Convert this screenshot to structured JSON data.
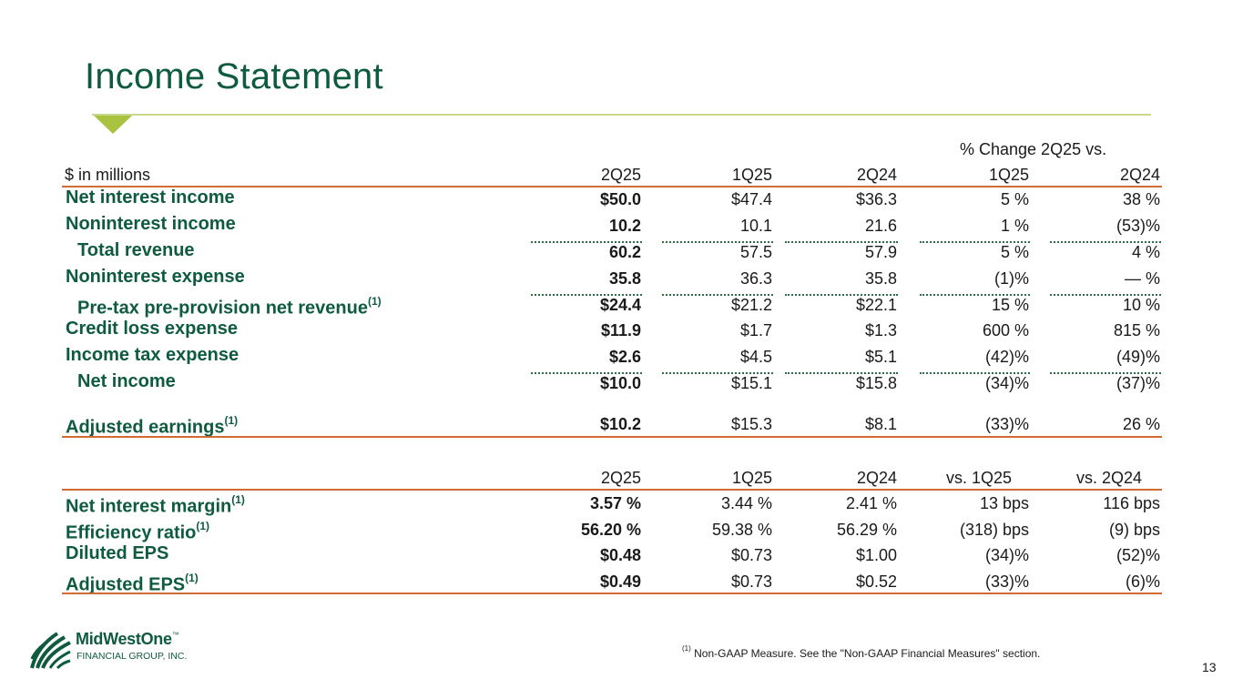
{
  "title": "Income Statement",
  "group_header": "% Change 2Q25 vs.",
  "header": {
    "label": "$ in millions",
    "cols": [
      "2Q25",
      "1Q25",
      "2Q24",
      "1Q25",
      "2Q24"
    ]
  },
  "rows": [
    {
      "label": "Net interest income",
      "sup": "",
      "values": [
        "$50.0",
        "$47.4",
        "$36.3",
        "5 %",
        "38 %"
      ]
    },
    {
      "label": "Noninterest income",
      "sup": "",
      "values": [
        "10.2",
        "10.1",
        "21.6",
        "1 %",
        "(53)%"
      ]
    },
    {
      "label": "Total revenue",
      "sup": "",
      "values": [
        "60.2",
        "57.5",
        "57.9",
        "5 %",
        "4 %"
      ]
    },
    {
      "label": "Noninterest expense",
      "sup": "",
      "values": [
        "35.8",
        "36.3",
        "35.8",
        "(1)%",
        "— %"
      ]
    },
    {
      "label": "Pre-tax pre-provision net revenue",
      "sup": "(1)",
      "values": [
        "$24.4",
        "$21.2",
        "$22.1",
        "15 %",
        "10 %"
      ]
    },
    {
      "label": "Credit loss expense",
      "sup": "",
      "values": [
        "$11.9",
        "$1.7",
        "$1.3",
        "600 %",
        "815 %"
      ]
    },
    {
      "label": "Income tax expense",
      "sup": "",
      "values": [
        "$2.6",
        "$4.5",
        "$5.1",
        "(42)%",
        "(49)%"
      ]
    },
    {
      "label": "Net income",
      "sup": "",
      "values": [
        "$10.0",
        "$15.1",
        "$15.8",
        "(34)%",
        "(37)%"
      ]
    },
    {
      "label": "Adjusted earnings",
      "sup": "(1)",
      "values": [
        "$10.2",
        "$15.3",
        "$8.1",
        "(33)%",
        "26 %"
      ]
    }
  ],
  "header2": {
    "cols": [
      "2Q25",
      "1Q25",
      "2Q24",
      "vs. 1Q25",
      "vs. 2Q24"
    ]
  },
  "rows2": [
    {
      "label": "Net interest margin",
      "sup": "(1)",
      "values": [
        "3.57 %",
        "3.44 %",
        "2.41 %",
        "13 bps",
        "116 bps"
      ]
    },
    {
      "label": "Efficiency ratio",
      "sup": "(1)",
      "values": [
        "56.20 %",
        "59.38 %",
        "56.29 %",
        "(318) bps",
        "(9) bps"
      ]
    },
    {
      "label": "Diluted EPS",
      "sup": "",
      "values": [
        "$0.48",
        "$0.73",
        "$1.00",
        "(34)%",
        "(52)%"
      ]
    },
    {
      "label": "Adjusted EPS",
      "sup": "(1)",
      "values": [
        "$0.49",
        "$0.73",
        "$0.52",
        "(33)%",
        "(6)%"
      ]
    }
  ],
  "footnote": {
    "marker": "(1)",
    "text": " Non-GAAP Measure. See the \"Non-GAAP Financial Measures\" section."
  },
  "page_number": "13",
  "logo": {
    "name": "MidWestOne",
    "tm": "™",
    "subtitle": "FINANCIAL GROUP, INC."
  },
  "colors": {
    "title": "#0e5b3f",
    "accent_rule": "#d26a35",
    "title_rule": "#c9d88f",
    "triangle": "#a9c23f"
  }
}
